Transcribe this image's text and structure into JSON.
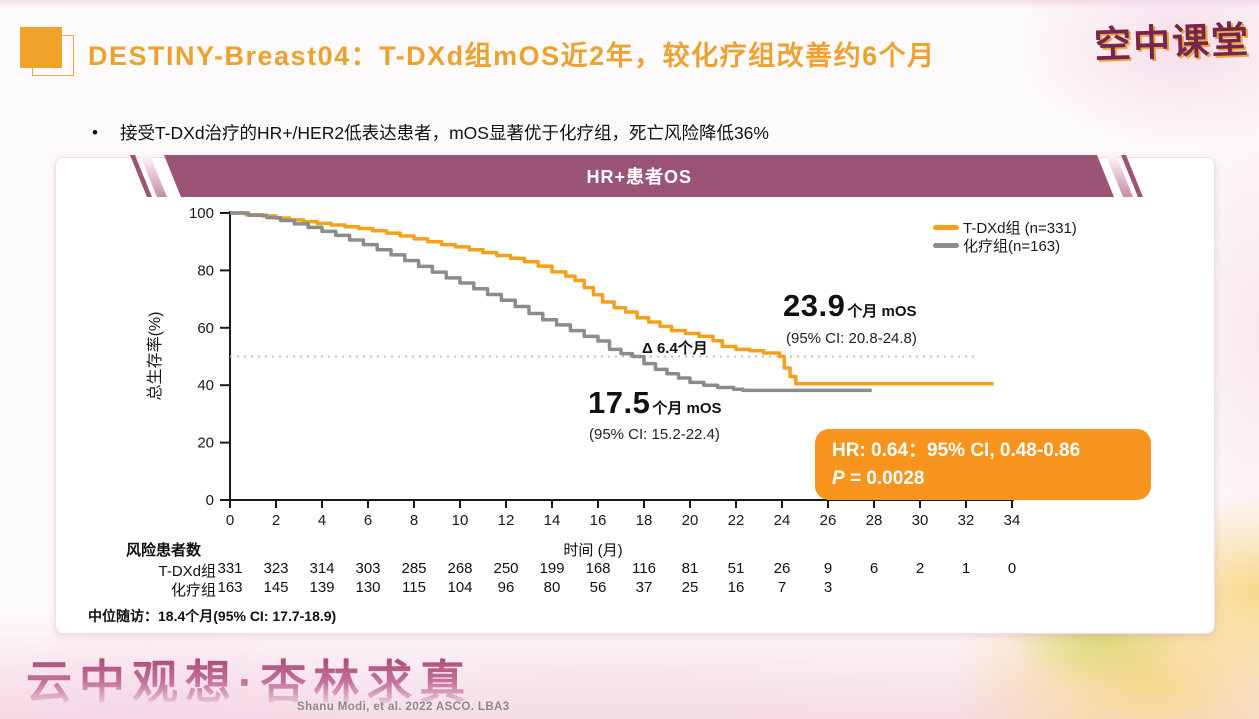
{
  "header": {
    "title": "DESTINY-Breast04：T-DXd组mOS近2年，较化疗组改善约6个月",
    "logo": "空中课堂"
  },
  "bullet": {
    "marker": "•",
    "text": "接受T-DXd治疗的HR+/HER2低表达患者，mOS显著优于化疗组，死亡风险降低36%"
  },
  "panel": {
    "banner_label": "HR+患者OS"
  },
  "chart_data": {
    "type": "line",
    "variant": "kaplan-meier-step",
    "title": "HR+患者OS",
    "xlabel": "时间 (月)",
    "ylabel": "总生存率(%)",
    "xlim": [
      0,
      34
    ],
    "ylim": [
      0,
      100
    ],
    "x_ticks": [
      0,
      2,
      4,
      6,
      8,
      10,
      12,
      14,
      16,
      18,
      20,
      22,
      24,
      26,
      28,
      30,
      32,
      34
    ],
    "y_ticks": [
      0,
      20,
      40,
      60,
      80,
      100
    ],
    "grid": false,
    "reference_line_y": 50,
    "legend_position": "upper right",
    "series": [
      {
        "name": "T-DXd组 (n=331)",
        "color": "#F5A01A",
        "median_months": 23.9,
        "ci": "95% CI: 20.8-24.8",
        "steps": [
          [
            0,
            100
          ],
          [
            0.7,
            99.4
          ],
          [
            1.4,
            99
          ],
          [
            2,
            98.2
          ],
          [
            2.6,
            97.6
          ],
          [
            3.2,
            97
          ],
          [
            3.8,
            96.4
          ],
          [
            4.4,
            95.8
          ],
          [
            5,
            95.2
          ],
          [
            5.6,
            94.6
          ],
          [
            6.2,
            93.8
          ],
          [
            6.8,
            93
          ],
          [
            7.4,
            92
          ],
          [
            8,
            91
          ],
          [
            8.6,
            90
          ],
          [
            9.2,
            89
          ],
          [
            9.8,
            88.2
          ],
          [
            10.4,
            87.2
          ],
          [
            11,
            86.2
          ],
          [
            11.6,
            85.2
          ],
          [
            12.2,
            84.2
          ],
          [
            12.8,
            83
          ],
          [
            13.4,
            81.5
          ],
          [
            14,
            79.5
          ],
          [
            14.6,
            78
          ],
          [
            15,
            76.5
          ],
          [
            15.4,
            74
          ],
          [
            15.8,
            71.5
          ],
          [
            16.2,
            69
          ],
          [
            16.7,
            67
          ],
          [
            17.2,
            65.5
          ],
          [
            17.7,
            63.5
          ],
          [
            18.2,
            62
          ],
          [
            18.7,
            60.5
          ],
          [
            19.2,
            59
          ],
          [
            19.8,
            58
          ],
          [
            20.4,
            57
          ],
          [
            21,
            55.5
          ],
          [
            21.4,
            53.5
          ],
          [
            22,
            52.5
          ],
          [
            22.6,
            52
          ],
          [
            23.2,
            51.2
          ],
          [
            23.9,
            50
          ],
          [
            24.1,
            46
          ],
          [
            24.35,
            43
          ],
          [
            24.6,
            40.5
          ],
          [
            33.2,
            40.5
          ]
        ]
      },
      {
        "name": "化疗组(n=163)",
        "color": "#8C8C8C",
        "median_months": 17.5,
        "ci": "95% CI: 15.2-22.4",
        "steps": [
          [
            0,
            100
          ],
          [
            0.8,
            99.2
          ],
          [
            1.6,
            98.4
          ],
          [
            2.2,
            97.4
          ],
          [
            2.8,
            96.2
          ],
          [
            3.4,
            95
          ],
          [
            4,
            93.6
          ],
          [
            4.6,
            92.2
          ],
          [
            5.2,
            90.6
          ],
          [
            5.8,
            89
          ],
          [
            6.4,
            87.2
          ],
          [
            7,
            85.4
          ],
          [
            7.6,
            83.4
          ],
          [
            8.2,
            81.4
          ],
          [
            8.8,
            79.4
          ],
          [
            9.4,
            77.4
          ],
          [
            10,
            75.6
          ],
          [
            10.6,
            73.6
          ],
          [
            11.2,
            71.6
          ],
          [
            11.8,
            69.6
          ],
          [
            12.4,
            67.4
          ],
          [
            13,
            65
          ],
          [
            13.6,
            62.8
          ],
          [
            14.2,
            61
          ],
          [
            14.8,
            59
          ],
          [
            15.4,
            57
          ],
          [
            16,
            55.4
          ],
          [
            16.5,
            52.5
          ],
          [
            17,
            51
          ],
          [
            17.5,
            50
          ],
          [
            18,
            47.5
          ],
          [
            18.5,
            45.5
          ],
          [
            19,
            44
          ],
          [
            19.5,
            42.5
          ],
          [
            20,
            41
          ],
          [
            20.6,
            40
          ],
          [
            21.2,
            39.2
          ],
          [
            21.9,
            38.6
          ],
          [
            22.3,
            38.2
          ],
          [
            27.9,
            38.2
          ]
        ]
      }
    ]
  },
  "annotations": {
    "tdxd_median_value": "23.9",
    "tdxd_median_unit": "个月 mOS",
    "tdxd_ci": "(95% CI: 20.8-24.8)",
    "delta": "Δ 6.4个月",
    "chemo_median_value": "17.5",
    "chemo_median_unit": "个月 mOS",
    "chemo_ci": "(95% CI: 15.2-22.4)",
    "hr_line1": "HR: 0.64：95% CI, 0.48-0.86",
    "hr_p_label": "P",
    "hr_p_rest": " = 0.0028"
  },
  "risk_table": {
    "title": "风险患者数",
    "rows": [
      {
        "label": "T-DXd组",
        "values": [
          331,
          323,
          314,
          303,
          285,
          268,
          250,
          199,
          168,
          116,
          81,
          51,
          26,
          9,
          6,
          2,
          1,
          0
        ]
      },
      {
        "label": "化疗组",
        "values": [
          163,
          145,
          139,
          130,
          115,
          104,
          96,
          80,
          56,
          37,
          25,
          16,
          7,
          3
        ]
      }
    ]
  },
  "footnote": {
    "text": "中位随访：18.4个月(95% CI: 17.7-18.9)"
  },
  "footer": {
    "watermark": "云中观想·杏林求真",
    "citation": "Shanu Modi, et al. 2022 ASCO. LBA3"
  },
  "colors": {
    "title_orange": "#EDA22F",
    "curve_orange": "#F5A01A",
    "curve_gray": "#8C8C8C",
    "hr_box_orange": "#F7941D",
    "banner_purple": "#9C5476",
    "logo_maroon": "#74264C",
    "logo_outline": "#F0A63E",
    "watermark_pink": "#A8446F",
    "reference_line_gray": "#BFBFBF"
  }
}
